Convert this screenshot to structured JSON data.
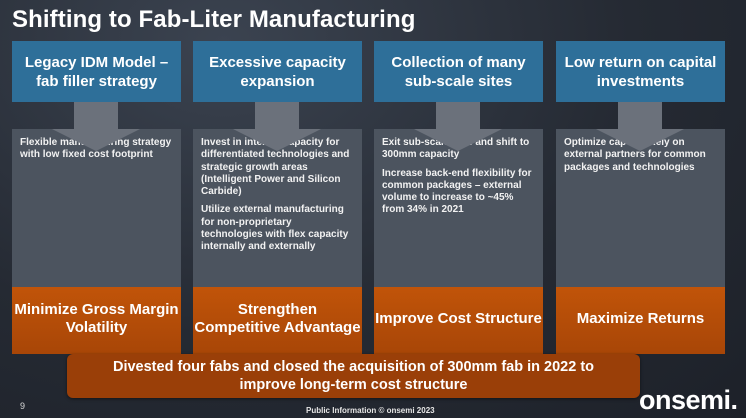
{
  "slide": {
    "title": "Shifting to Fab-Liter Manufacturing",
    "page_number": "9",
    "footer": "Public Information © onsemi 2023",
    "logo_text": "onsemi."
  },
  "columns": [
    {
      "header": "Legacy IDM Model – fab filler strategy",
      "bullets": [
        "Flexible manufacturing strategy with low fixed cost footprint"
      ],
      "outcome": "Minimize Gross Margin Volatility"
    },
    {
      "header": "Excessive capacity expansion",
      "bullets": [
        "Invest in internal capacity for differentiated technologies and strategic growth areas (Intelligent Power and Silicon Carbide)",
        "Utilize external manufacturing for non-proprietary technologies with flex capacity internally and externally"
      ],
      "outcome": "Strengthen Competitive Advantage"
    },
    {
      "header": "Collection of many sub-scale sites",
      "bullets": [
        "Exit sub-scale fabs and shift to 300mm capacity",
        "Increase back-end flexibility for common packages – external volume to increase to ~45% from 34% in 2021"
      ],
      "outcome": "Improve Cost Structure"
    },
    {
      "header": "Low return on capital investments",
      "bullets": [
        "Optimize capex – Rely on external partners for common packages and technologies"
      ],
      "outcome": "Maximize Returns"
    }
  ],
  "banner": "Divested four fabs and closed the acquisition of 300mm fab in 2022 to improve long-term cost structure",
  "colors": {
    "header_blue": "#2e6f99",
    "body_gray": "#4c545f",
    "arrow_gray": "#6b717b",
    "outcome_orange": "#c15409",
    "banner_orange": "#9a3f08"
  }
}
